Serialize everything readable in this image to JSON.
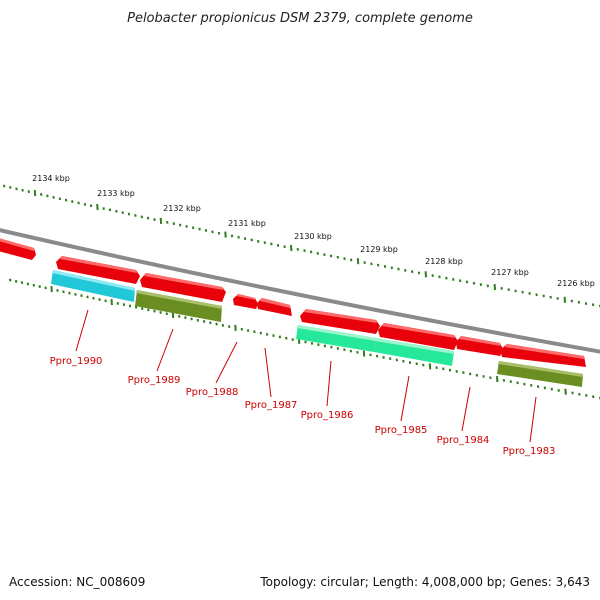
{
  "title": "Pelobacter propionicus DSM 2379, complete genome",
  "footer": {
    "accession": "Accession: NC_008609",
    "topology": "Topology: circular; Length: 4,008,000 bp; Genes: 3,643"
  },
  "colors": {
    "backbone": "#8a8a8a",
    "ticks": "#2e7d1e",
    "label": "#cc0000",
    "forward_gene": "#e8000a",
    "cyan_feature": "#20c8d8",
    "olive_feature": "#6b8e23",
    "teal_feature": "#25e89a"
  },
  "scale_labels": [
    "2134 kbp",
    "2133 kbp",
    "2132 kbp",
    "2131 kbp",
    "2130 kbp",
    "2129 kbp",
    "2128 kbp",
    "2127 kbp",
    "2126 kbp"
  ],
  "genes": [
    {
      "label": "Ppro_1990",
      "color": "cyan"
    },
    {
      "label": "Ppro_1989",
      "color": "olive"
    },
    {
      "label": "Ppro_1988",
      "color": "red"
    },
    {
      "label": "Ppro_1987",
      "color": "red"
    },
    {
      "label": "Ppro_1986",
      "color": "teal"
    },
    {
      "label": "Ppro_1985",
      "color": "teal"
    },
    {
      "label": "Ppro_1984",
      "color": "red"
    },
    {
      "label": "Ppro_1983",
      "color": "olive"
    }
  ]
}
